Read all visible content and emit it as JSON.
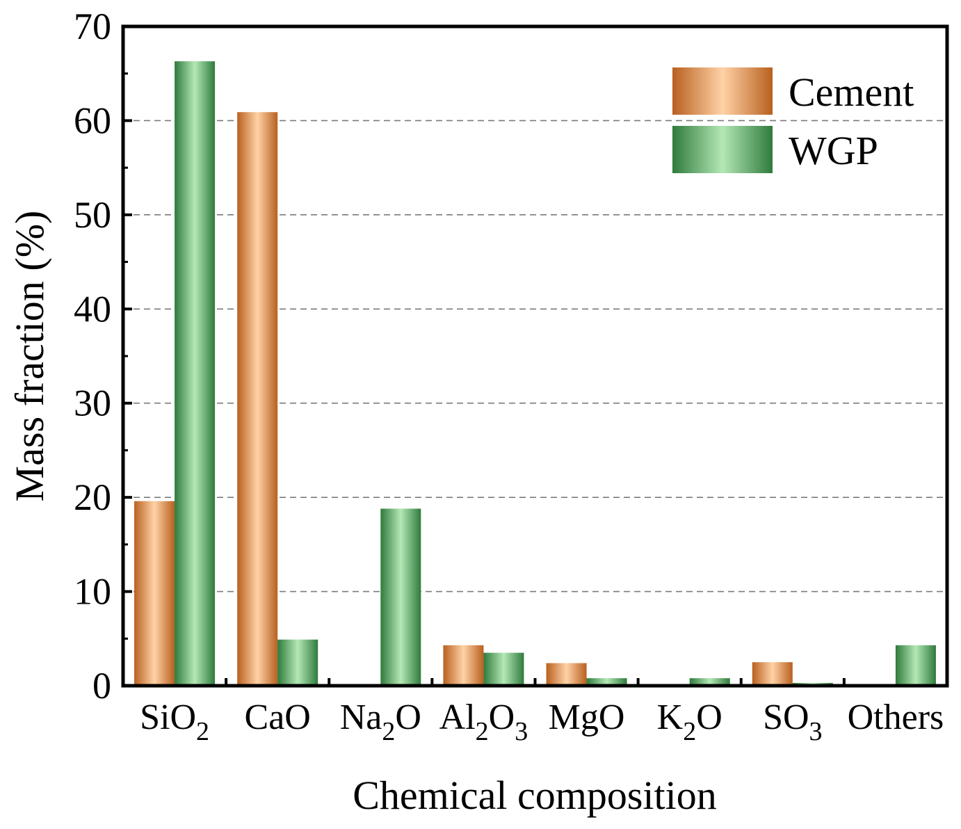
{
  "chart_data": {
    "type": "bar",
    "title": "",
    "xlabel": "Chemical composition",
    "ylabel": "Mass fraction (%)",
    "ylim": [
      0,
      70
    ],
    "yticks": [
      0,
      10,
      20,
      30,
      40,
      50,
      60,
      70
    ],
    "grid": true,
    "legend_position": "top-right",
    "categories": [
      {
        "base": "SiO",
        "sub1": "2",
        "mid": "",
        "sub2": ""
      },
      {
        "base": "CaO",
        "sub1": "",
        "mid": "",
        "sub2": ""
      },
      {
        "base": "Na",
        "sub1": "2",
        "mid": "O",
        "sub2": ""
      },
      {
        "base": "Al",
        "sub1": "2",
        "mid": "O",
        "sub2": "3"
      },
      {
        "base": "MgO",
        "sub1": "",
        "mid": "",
        "sub2": ""
      },
      {
        "base": "K",
        "sub1": "2",
        "mid": "O",
        "sub2": ""
      },
      {
        "base": "SO",
        "sub1": "3",
        "mid": "",
        "sub2": ""
      },
      {
        "base": "Others",
        "sub1": "",
        "mid": "",
        "sub2": ""
      }
    ],
    "series": [
      {
        "name": "Cement",
        "colors": {
          "edge": "#b8601f",
          "mid": "#ffd2a6"
        },
        "values": [
          19.6,
          60.9,
          0,
          4.3,
          2.4,
          0,
          2.5,
          0
        ]
      },
      {
        "name": "WGP",
        "colors": {
          "edge": "#2f7a3c",
          "mid": "#b4e8b6"
        },
        "values": [
          66.3,
          4.9,
          18.8,
          3.5,
          0.8,
          0.8,
          0.3,
          4.3
        ]
      }
    ]
  }
}
